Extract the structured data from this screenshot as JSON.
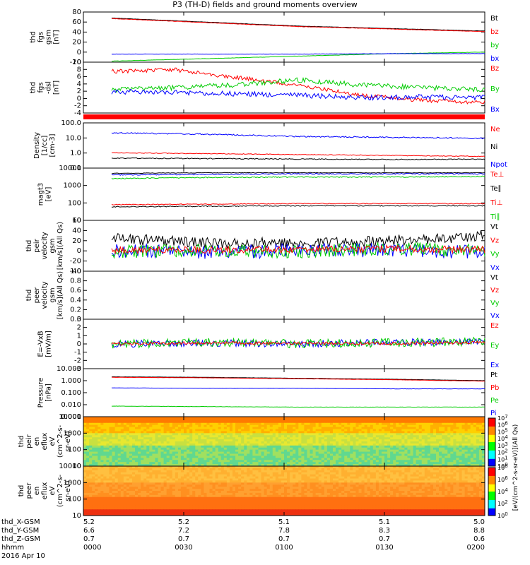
{
  "title": "P3 (TH-D) fields and ground moments overview",
  "colors": {
    "black": "#000000",
    "red": "#ff0000",
    "green": "#00cc00",
    "blue": "#0000ff",
    "redbar": "#ff0000"
  },
  "panels": [
    {
      "id": "fgs_gsm",
      "ylabel": [
        "thd",
        "fgs",
        "gsm",
        "[nT]"
      ],
      "yticks": [
        "80",
        "60",
        "40",
        "20",
        "0",
        "-20"
      ],
      "legend": [
        {
          "t": "Bt",
          "c": "black"
        },
        {
          "t": "bz",
          "c": "red"
        },
        {
          "t": "by",
          "c": "green"
        },
        {
          "t": "bx",
          "c": "blue"
        }
      ]
    },
    {
      "id": "fgs_dsl",
      "ylabel": [
        "thd",
        "fgs",
        "-dsl",
        "[nT]"
      ],
      "yticks": [
        "10",
        "8",
        "6",
        "4",
        "2",
        "0",
        "-2",
        "-4"
      ],
      "legend": [
        {
          "t": "Bz",
          "c": "red"
        },
        {
          "t": "By",
          "c": "green"
        },
        {
          "t": "Bx",
          "c": "blue"
        }
      ]
    },
    {
      "id": "density",
      "ylabel": [
        "Density",
        "[1/cc]",
        "[cm-3]"
      ],
      "yticks": [
        "100.0",
        "10.0",
        "1.0",
        "0.1"
      ],
      "legend": [
        {
          "t": "Ne",
          "c": "red"
        },
        {
          "t": "Ni",
          "c": "black"
        },
        {
          "t": "Npot",
          "c": "blue"
        }
      ]
    },
    {
      "id": "temp",
      "ylabel": [
        "magt3",
        "[eV]"
      ],
      "yticks": [
        "10000",
        "1000",
        "100",
        "10"
      ],
      "legend": [
        {
          "t": "Te⊥",
          "c": "red"
        },
        {
          "t": "Te∥",
          "c": "black"
        },
        {
          "t": "Ti⊥",
          "c": "red"
        },
        {
          "t": "Ti∥",
          "c": "green"
        }
      ]
    },
    {
      "id": "peir_vel",
      "ylabel": [
        "thd",
        "peir",
        "velocity",
        "gsm",
        "[km/s](All Qs)"
      ],
      "yticks": [
        "60",
        "40",
        "20",
        "0",
        "-20",
        "-40"
      ],
      "legend": [
        {
          "t": "Vt",
          "c": "black"
        },
        {
          "t": "Vz",
          "c": "red"
        },
        {
          "t": "Vy",
          "c": "green"
        },
        {
          "t": "Vx",
          "c": "blue"
        }
      ]
    },
    {
      "id": "peer_vel",
      "ylabel": [
        "thd",
        "peer",
        "velocity",
        "gsm",
        "[km/s](All Qs)"
      ],
      "yticks": [
        "1.0",
        "0.8",
        "0.6",
        "0.4",
        "0.2",
        "0.0"
      ],
      "legend": [
        {
          "t": "Vt",
          "c": "black"
        },
        {
          "t": "Vz",
          "c": "red"
        },
        {
          "t": "Vy",
          "c": "green"
        },
        {
          "t": "Vx",
          "c": "blue"
        }
      ]
    },
    {
      "id": "efield",
      "ylabel": [
        "E=-VxB",
        "[mV/m]"
      ],
      "yticks": [
        "3",
        "2",
        "1",
        "0",
        "-1",
        "-2",
        "-3"
      ],
      "legend": [
        {
          "t": "Ez",
          "c": "red"
        },
        {
          "t": "Ey",
          "c": "green"
        },
        {
          "t": "Ex",
          "c": "blue"
        }
      ]
    },
    {
      "id": "pressure",
      "ylabel": [
        "Pressure",
        "[nPa]"
      ],
      "yticks": [
        "10.000",
        "1.000",
        "0.100",
        "0.010",
        "0.001"
      ],
      "legend": [
        {
          "t": "Pt",
          "c": "black"
        },
        {
          "t": "Pb",
          "c": "red"
        },
        {
          "t": "Pe",
          "c": "green"
        },
        {
          "t": "Pi",
          "c": "blue"
        }
      ]
    },
    {
      "id": "peir_en",
      "ylabel": [
        "thd",
        "peir",
        "en",
        "eflux",
        "eV",
        "(cm^2-s-",
        "sr-eV)"
      ],
      "yticks": [
        "10000",
        "1000",
        "100",
        "10"
      ],
      "legend": []
    },
    {
      "id": "peer_en",
      "ylabel": [
        "thd",
        "peer",
        "en",
        "eflux",
        "eV",
        "(cm^2-s-",
        "sr-eV)"
      ],
      "yticks": [
        "10000",
        "1000",
        "100",
        "10"
      ],
      "legend": []
    }
  ],
  "colorbar": {
    "ticks": [
      "10^7",
      "10^6",
      "10^5",
      "10^4",
      "10^3",
      "10^2",
      "10^1",
      "10^0"
    ],
    "ticks2": [
      "10^8",
      "10^6",
      "10^4",
      "10^2",
      "10^0"
    ],
    "label": "[eV/(cm^2-s-sr-eV)](All Qs)"
  },
  "footer": {
    "labels": [
      "thd_X-GSM",
      "thd_Y-GSM",
      "thd_Z-GSM",
      "hhmm",
      "2016 Apr 10"
    ],
    "cols": [
      [
        "5.2",
        "6.6",
        "0.7",
        "0000"
      ],
      [
        "5.2",
        "7.2",
        "0.7",
        "0030"
      ],
      [
        "5.1",
        "7.8",
        "0.7",
        "0100"
      ],
      [
        "5.1",
        "8.3",
        "0.7",
        "0130"
      ],
      [
        "5.0",
        "8.8",
        "0.6",
        "0200"
      ]
    ]
  },
  "chart_data": [
    {
      "type": "line",
      "title": "P3 (TH-D) fields and ground moments overview",
      "x": [
        "0000",
        "0030",
        "0100",
        "0130",
        "0200"
      ],
      "series": [
        {
          "name": "Bt",
          "values": [
            70,
            62,
            55,
            50,
            44
          ]
        },
        {
          "name": "bz",
          "values": [
            69,
            61,
            54,
            49,
            43
          ]
        },
        {
          "name": "by",
          "values": [
            -18,
            -15,
            -10,
            -5,
            -1
          ]
        },
        {
          "name": "bx",
          "values": [
            -4,
            -4,
            -4,
            -3,
            -3
          ]
        }
      ],
      "ylim": [
        -20,
        80
      ]
    },
    {
      "type": "line",
      "x": [
        "0000",
        "0030",
        "0100",
        "0130",
        "0200"
      ],
      "series": [
        {
          "name": "Bz",
          "values": [
            7.5,
            5,
            3,
            1,
            0
          ]
        },
        {
          "name": "By",
          "values": [
            1.5,
            2,
            3,
            2.5,
            2
          ]
        },
        {
          "name": "Bx",
          "values": [
            1,
            1,
            0.5,
            0.5,
            -0.5
          ]
        }
      ],
      "ylim": [
        -5,
        10
      ]
    },
    {
      "type": "line",
      "x": [
        "0000",
        "0030",
        "0100",
        "0130",
        "0200"
      ],
      "series": [
        {
          "name": "Ne",
          "values": [
            1.5,
            1.2,
            1.0,
            0.9,
            0.8
          ]
        },
        {
          "name": "Ni",
          "values": [
            0.8,
            0.7,
            0.7,
            0.6,
            0.6
          ]
        },
        {
          "name": "Npot",
          "values": [
            35,
            25,
            18,
            15,
            14
          ]
        }
      ],
      "ylim": [
        0.1,
        300
      ],
      "yscale": "log"
    },
    {
      "type": "line",
      "x": [
        "0000",
        "0030",
        "0100",
        "0130",
        "0200"
      ],
      "series": [
        {
          "name": "Te⊥",
          "values": [
            5000,
            5500,
            5500,
            6000,
            6000
          ]
        },
        {
          "name": "Te∥",
          "values": [
            6500,
            6500,
            7000,
            7000,
            7000
          ]
        },
        {
          "name": "Ti⊥",
          "values": [
            80,
            85,
            90,
            90,
            95
          ]
        },
        {
          "name": "Ti∥",
          "values": [
            2500,
            2800,
            3000,
            3000,
            3200
          ]
        }
      ],
      "ylim": [
        10,
        10000
      ],
      "yscale": "log"
    },
    {
      "type": "line",
      "x": [
        "0000",
        "0030",
        "0100",
        "0130",
        "0200"
      ],
      "series": [
        {
          "name": "Vt",
          "values": [
            20,
            15,
            15,
            18,
            25
          ]
        },
        {
          "name": "Vz",
          "values": [
            5,
            3,
            5,
            5,
            3
          ]
        },
        {
          "name": "Vy",
          "values": [
            0,
            -3,
            0,
            5,
            0
          ]
        },
        {
          "name": "Vx",
          "values": [
            -5,
            -3,
            0,
            0,
            -5
          ]
        }
      ],
      "ylim": [
        -40,
        60
      ]
    },
    {
      "type": "line",
      "x": [
        "0000",
        "0030",
        "0100",
        "0130",
        "0200"
      ],
      "series": [],
      "ylim": [
        0,
        1
      ]
    },
    {
      "type": "line",
      "x": [
        "0000",
        "0030",
        "0100",
        "0130",
        "0200"
      ],
      "series": [
        {
          "name": "Ez",
          "values": [
            0,
            0.2,
            0.1,
            0.1,
            0.3
          ]
        },
        {
          "name": "Ey",
          "values": [
            0,
            0.3,
            0,
            0.2,
            0.5
          ]
        },
        {
          "name": "Ex",
          "values": [
            0,
            -0.2,
            0,
            -0.1,
            0
          ]
        }
      ],
      "ylim": [
        -3,
        3
      ]
    },
    {
      "type": "line",
      "x": [
        "0000",
        "0030",
        "0100",
        "0130",
        "0200"
      ],
      "series": [
        {
          "name": "Pt",
          "values": [
            2.0,
            1.8,
            1.5,
            1.2,
            0.9
          ]
        },
        {
          "name": "Pb",
          "values": [
            1.9,
            1.7,
            1.4,
            1.1,
            0.8
          ]
        },
        {
          "name": "Pe",
          "values": [
            0.012,
            0.011,
            0.01,
            0.009,
            0.009
          ]
        },
        {
          "name": "Pi",
          "values": [
            0.35,
            0.33,
            0.32,
            0.31,
            0.3
          ]
        }
      ],
      "ylim": [
        0.001,
        10
      ],
      "yscale": "log"
    },
    {
      "type": "heatmap",
      "x": [
        "0000",
        "0030",
        "0100",
        "0130",
        "0200"
      ],
      "ylim": [
        10,
        10000
      ],
      "yscale": "log"
    },
    {
      "type": "heatmap",
      "x": [
        "0000",
        "0030",
        "0100",
        "0130",
        "0200"
      ],
      "ylim": [
        10,
        10000
      ],
      "yscale": "log"
    }
  ]
}
